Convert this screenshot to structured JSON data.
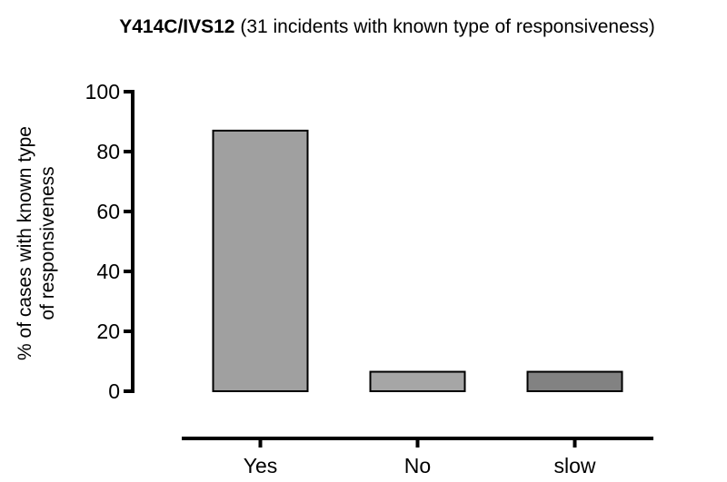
{
  "chart_data": {
    "type": "bar",
    "title_bold": "Y414C/IVS12",
    "title_rest": " (31 incidents with known type of responsiveness)",
    "ylabel_line1": "% of cases with known type",
    "ylabel_line2": "of responsiveness",
    "xlabel": "",
    "categories": [
      "Yes",
      "No",
      "slow"
    ],
    "values": [
      87,
      6.5,
      6.5
    ],
    "bar_colors": [
      "#a0a0a0",
      "#a6a6a6",
      "#828282"
    ],
    "ylim": [
      0,
      100
    ],
    "yticks": [
      0,
      20,
      40,
      60,
      80,
      100
    ],
    "grid": false,
    "legend": "none"
  }
}
